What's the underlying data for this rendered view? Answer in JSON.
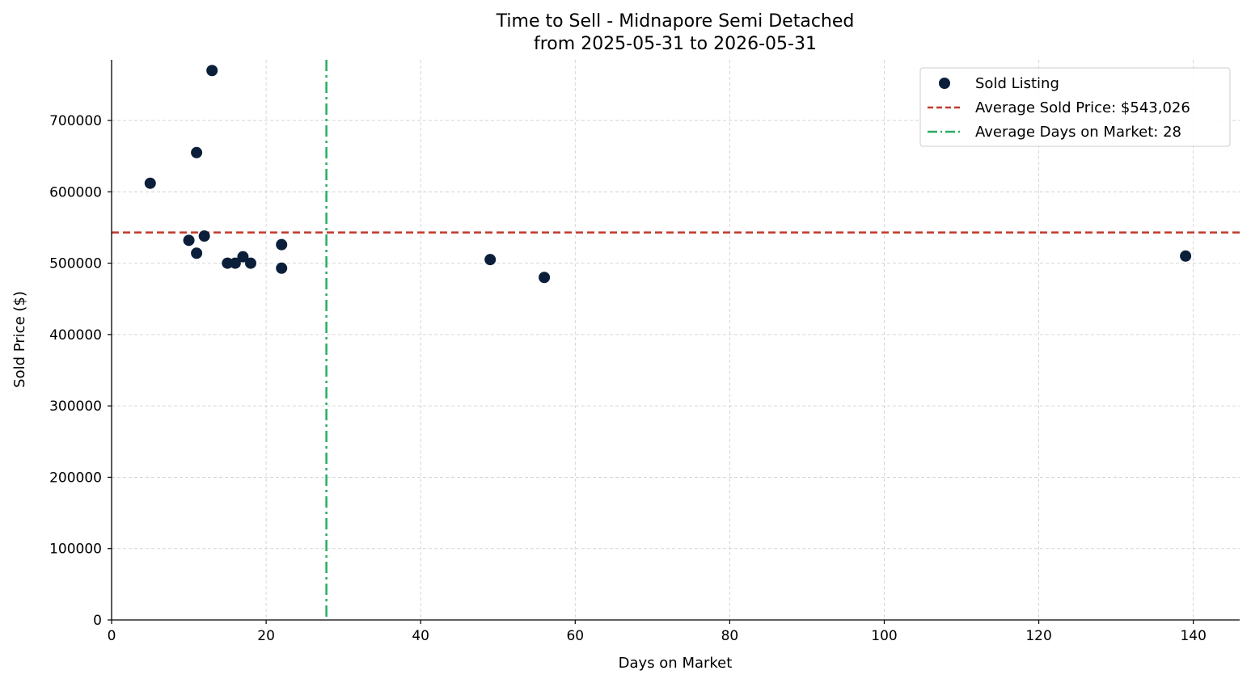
{
  "chart_data": {
    "type": "scatter",
    "title": "Time to Sell - Midnapore Semi Detached",
    "subtitle": "from 2025-05-31 to 2026-05-31",
    "xlabel": "Days on Market",
    "ylabel": "Sold Price ($)",
    "xlim": [
      0,
      146
    ],
    "ylim": [
      0,
      785000
    ],
    "xticks": [
      0,
      20,
      40,
      60,
      80,
      100,
      120,
      140
    ],
    "yticks": [
      0,
      100000,
      200000,
      300000,
      400000,
      500000,
      600000,
      700000
    ],
    "grid": true,
    "legend_position": "top-right",
    "series": [
      {
        "name": "Sold Listing",
        "color": "#0b1f3a",
        "x": [
          5,
          10,
          11,
          11,
          12,
          13,
          15,
          16,
          17,
          18,
          22,
          22,
          49,
          56,
          139
        ],
        "y": [
          612000,
          532000,
          655000,
          514000,
          538000,
          770000,
          500000,
          500000,
          509000,
          500000,
          526000,
          493000,
          505000,
          480000,
          510000
        ]
      }
    ],
    "reference_lines": [
      {
        "name": "Average Sold Price: $543,026",
        "orientation": "horizontal",
        "value": 543026,
        "color": "#c0392b",
        "style": "dashed"
      },
      {
        "name": "Average Days on Market: 28",
        "orientation": "vertical",
        "value": 27.8,
        "color": "#27ae60",
        "style": "dashdot"
      }
    ]
  }
}
